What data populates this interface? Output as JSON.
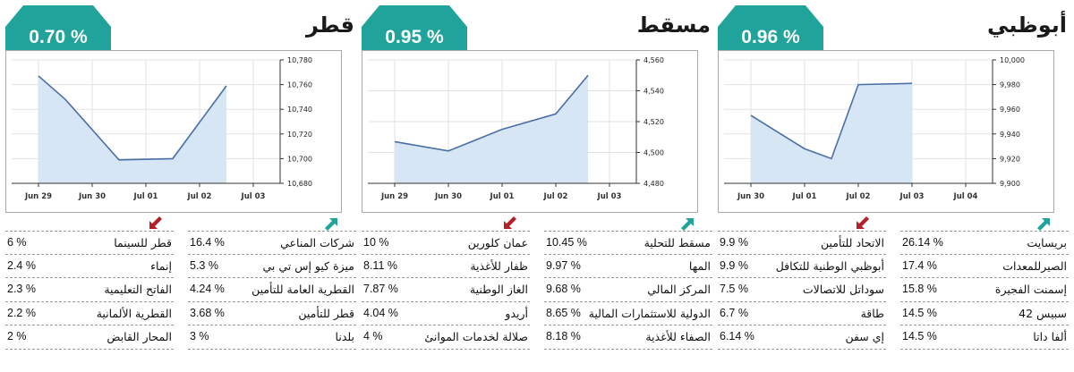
{
  "markets": [
    {
      "name": "أبوظبي",
      "change": "0.96 %",
      "up_arrow": "up-arrow-icon",
      "down_arrow": "down-arrow-icon",
      "accent_color": "#1fa39a",
      "down_color": "#b3202a",
      "gainers": [
        {
          "name": "بريسايت",
          "value": "26.14 %"
        },
        {
          "name": "الصيرللمعدات",
          "value": "17.4 %"
        },
        {
          "name": "إسمنت الفجيرة",
          "value": "15.8 %"
        },
        {
          "name": "سبيس 42",
          "value": "14.5 %"
        },
        {
          "name": "ألفا داتا",
          "value": "14.5 %"
        }
      ],
      "losers": [
        {
          "name": "الاتحاد للتأمين",
          "value": "9.9 %"
        },
        {
          "name": "أبوظبي الوطنية للتكافل",
          "value": "9.9 %"
        },
        {
          "name": "سوداتل للاتصالات",
          "value": "7.5 %"
        },
        {
          "name": "طاقة",
          "value": "6.7 %"
        },
        {
          "name": "إي سفن",
          "value": "6.14 %"
        }
      ]
    },
    {
      "name": "مسقط",
      "change": "0.95 %",
      "up_arrow": "up-arrow-icon",
      "down_arrow": "down-arrow-icon",
      "accent_color": "#1fa39a",
      "down_color": "#b3202a",
      "gainers": [
        {
          "name": "مسقط للتحلية",
          "value": "10.45 %"
        },
        {
          "name": "المها",
          "value": "9.97 %"
        },
        {
          "name": "المركز المالي",
          "value": "9.68 %"
        },
        {
          "name": "الدولية للاستثمارات المالية",
          "value": "8.65 %"
        },
        {
          "name": "الصفاء للأغذية",
          "value": "8.18 %"
        }
      ],
      "losers": [
        {
          "name": "عمان كلورين",
          "value": "10 %"
        },
        {
          "name": "ظفار للأغذية",
          "value": "8.11 %"
        },
        {
          "name": "الغاز الوطنية",
          "value": "7.87 %"
        },
        {
          "name": "أريدو",
          "value": "4.04 %"
        },
        {
          "name": "صلالة لخدمات الموانئ",
          "value": "4 %"
        }
      ]
    },
    {
      "name": "قطر",
      "change": "0.70 %",
      "up_arrow": "up-arrow-icon",
      "down_arrow": "down-arrow-icon",
      "accent_color": "#1fa39a",
      "down_color": "#b3202a",
      "gainers": [
        {
          "name": "شركات المناعي",
          "value": "16.4 %"
        },
        {
          "name": "ميزة كيو إس تي بي",
          "value": "5.3 %"
        },
        {
          "name": "القطرية العامة للتأمين",
          "value": "4.24 %"
        },
        {
          "name": "قطر للتأمين",
          "value": "3.68 %"
        },
        {
          "name": "بلدنا",
          "value": "3 %"
        }
      ],
      "losers": [
        {
          "name": "قطر للسينما",
          "value": "6 %"
        },
        {
          "name": "إنماء",
          "value": "2.4 %"
        },
        {
          "name": "الفاتح التعليمية",
          "value": "2.3 %"
        },
        {
          "name": "القطرية الألمانية",
          "value": "2.2 %"
        },
        {
          "name": "المحار القابض",
          "value": "2 %"
        }
      ]
    }
  ],
  "chart_data": [
    {
      "type": "area",
      "market": "أبوظبي",
      "categories": [
        "Jun 30",
        "Jul 01",
        "Jul 02",
        "Jul 03",
        "Jul 04"
      ],
      "x": [
        0,
        1,
        1.5,
        2,
        3
      ],
      "y": [
        9955,
        9928,
        9920,
        9980,
        9981
      ],
      "ylim": [
        9900,
        10000
      ],
      "yticks": [
        "9,900",
        "9,920",
        "9,940",
        "9,960",
        "9,980",
        "10,000"
      ],
      "grid": true
    },
    {
      "type": "area",
      "market": "مسقط",
      "categories": [
        "Jun 29",
        "Jun 30",
        "Jul 01",
        "Jul 02",
        "Jul 03"
      ],
      "x": [
        0,
        1,
        2,
        3,
        3.6
      ],
      "y": [
        4507,
        4501,
        4515,
        4525,
        4550
      ],
      "ylim": [
        4480,
        4560
      ],
      "yticks": [
        "4,480",
        "4,500",
        "4,520",
        "4,540",
        "4,560"
      ],
      "grid": true
    },
    {
      "type": "area",
      "market": "قطر",
      "categories": [
        "Jun 29",
        "Jun 30",
        "Jul 01",
        "Jul 02",
        "Jul 03"
      ],
      "x": [
        0,
        0.5,
        1.5,
        2.5,
        3.5
      ],
      "y": [
        10767,
        10748,
        10699,
        10700,
        10759
      ],
      "ylim": [
        10680,
        10780
      ],
      "yticks": [
        "10,680",
        "10,700",
        "10,720",
        "10,740",
        "10,760",
        "10,780"
      ],
      "grid": true
    }
  ]
}
